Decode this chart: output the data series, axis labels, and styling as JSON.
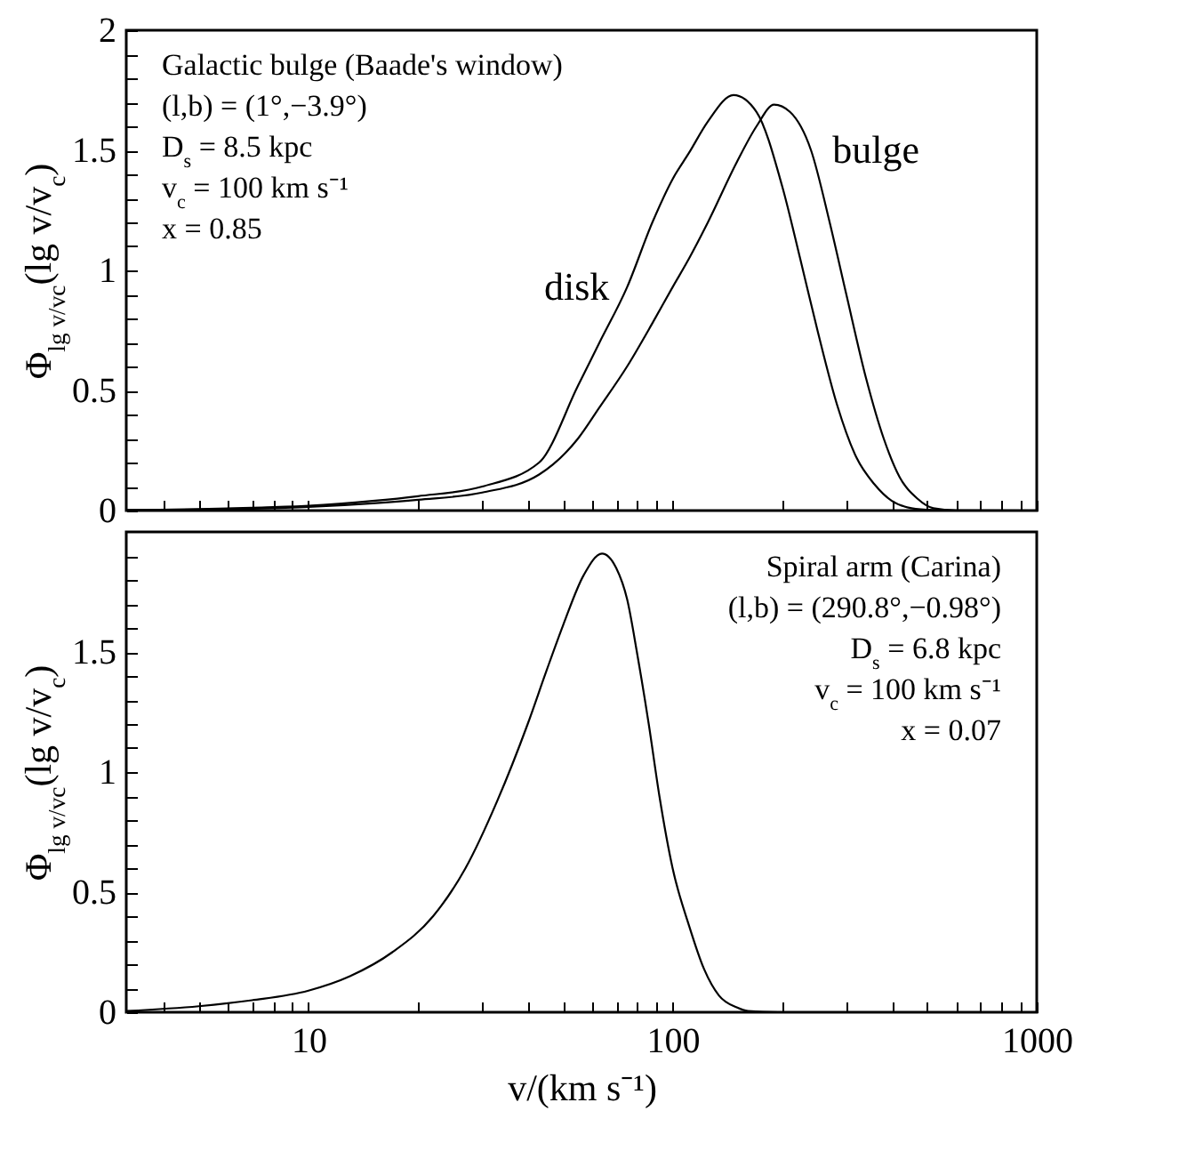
{
  "chart_data": [
    {
      "type": "line",
      "ylabel": "Φ$_{lg v/vc}$(lg v/v$_{c}$)",
      "log": "x",
      "tick_labels": "y",
      "xlim": [
        3.16,
        1000
      ],
      "xticks": [
        {
          "value": 4,
          "label": null
        },
        {
          "value": 5,
          "label": null
        },
        {
          "value": 6,
          "label": null
        },
        {
          "value": 7,
          "label": null
        },
        {
          "value": 8,
          "label": null
        },
        {
          "value": 9,
          "label": null
        },
        10,
        {
          "value": 20,
          "label": null
        },
        {
          "value": 30,
          "label": null
        },
        {
          "value": 40,
          "label": null
        },
        {
          "value": 50,
          "label": null
        },
        {
          "value": 60,
          "label": null
        },
        {
          "value": 70,
          "label": null
        },
        {
          "value": 80,
          "label": null
        },
        {
          "value": 90,
          "label": null
        },
        100,
        {
          "value": 200,
          "label": null
        },
        {
          "value": 300,
          "label": null
        },
        {
          "value": 400,
          "label": null
        },
        {
          "value": 500,
          "label": null
        },
        {
          "value": 600,
          "label": null
        },
        {
          "value": 700,
          "label": null
        },
        {
          "value": 800,
          "label": null
        },
        {
          "value": 900,
          "label": null
        },
        1000
      ],
      "ylim": [
        0,
        2
      ],
      "yticks": [
        0,
        {
          "value": 0.1,
          "label": null
        },
        {
          "value": 0.2,
          "label": null
        },
        {
          "value": 0.3,
          "label": null
        },
        {
          "value": 0.4,
          "label": null
        },
        0.5,
        {
          "value": 0.6,
          "label": null
        },
        {
          "value": 0.7,
          "label": null
        },
        {
          "value": 0.8,
          "label": null
        },
        {
          "value": 0.9,
          "label": null
        },
        1,
        {
          "value": 1.1,
          "label": null
        },
        {
          "value": 1.2,
          "label": null
        },
        {
          "value": 1.3,
          "label": null
        },
        {
          "value": 1.4,
          "label": null
        },
        1.5,
        {
          "value": 1.6,
          "label": null
        },
        {
          "value": 1.7,
          "label": null
        },
        {
          "value": 1.8,
          "label": null
        },
        {
          "value": 1.9,
          "label": null
        },
        2
      ],
      "annotations": [
        "Galactic bulge (Baade's window)",
        "(l,b) = (1°,−3.9°)",
        "D$_{s}$ = 8.5 kpc",
        "v$_{c}$ = 100 km s⁻¹",
        "x = 0.85"
      ],
      "series": [
        {
          "name": "disk",
          "color": "#000000",
          "x": [
            3.16,
            5,
            7,
            10,
            15,
            20,
            30,
            43,
            55,
            63,
            75,
            88,
            100,
            111,
            125,
            147,
            170,
            200,
            224,
            250,
            283,
            320,
            358,
            400,
            453,
            520,
            600
          ],
          "values": [
            0.002,
            0.006,
            0.012,
            0.02,
            0.04,
            0.06,
            0.1,
            0.2,
            0.52,
            0.7,
            0.93,
            1.2,
            1.38,
            1.49,
            1.62,
            1.73,
            1.66,
            1.35,
            1.05,
            0.75,
            0.44,
            0.22,
            0.11,
            0.04,
            0.01,
            0.002,
            0
          ]
        },
        {
          "name": "bulge",
          "color": "#000000",
          "x": [
            3.16,
            5,
            7,
            10,
            15,
            20,
            30,
            43,
            55,
            63,
            75,
            88,
            100,
            111,
            125,
            150,
            170,
            190,
            210,
            240,
            270,
            300,
            340,
            380,
            420,
            470,
            520,
            600,
            1000
          ],
          "values": [
            0.001,
            0.004,
            0.008,
            0.015,
            0.03,
            0.045,
            0.075,
            0.15,
            0.3,
            0.43,
            0.6,
            0.78,
            0.93,
            1.05,
            1.2,
            1.45,
            1.6,
            1.69,
            1.66,
            1.5,
            1.2,
            0.9,
            0.55,
            0.3,
            0.14,
            0.05,
            0.01,
            0.001,
            0
          ]
        }
      ]
    },
    {
      "type": "line",
      "ylabel": "Φ$_{lg v/vc}$(lg v/v$_{c}$)",
      "xlabel": "v/(km s⁻¹)",
      "log": "x",
      "xlim": [
        3.16,
        1000
      ],
      "xticks": [
        {
          "value": 4,
          "label": null
        },
        {
          "value": 5,
          "label": null
        },
        {
          "value": 6,
          "label": null
        },
        {
          "value": 7,
          "label": null
        },
        {
          "value": 8,
          "label": null
        },
        {
          "value": 9,
          "label": null
        },
        10,
        {
          "value": 20,
          "label": null
        },
        {
          "value": 30,
          "label": null
        },
        {
          "value": 40,
          "label": null
        },
        {
          "value": 50,
          "label": null
        },
        {
          "value": 60,
          "label": null
        },
        {
          "value": 70,
          "label": null
        },
        {
          "value": 80,
          "label": null
        },
        {
          "value": 90,
          "label": null
        },
        100,
        {
          "value": 200,
          "label": null
        },
        {
          "value": 300,
          "label": null
        },
        {
          "value": 400,
          "label": null
        },
        {
          "value": 500,
          "label": null
        },
        {
          "value": 600,
          "label": null
        },
        {
          "value": 700,
          "label": null
        },
        {
          "value": 800,
          "label": null
        },
        {
          "value": 900,
          "label": null
        },
        1000
      ],
      "ylim": [
        0,
        2
      ],
      "yticks": [
        0,
        {
          "value": 0.1,
          "label": null
        },
        {
          "value": 0.2,
          "label": null
        },
        {
          "value": 0.3,
          "label": null
        },
        {
          "value": 0.4,
          "label": null
        },
        0.5,
        {
          "value": 0.6,
          "label": null
        },
        {
          "value": 0.7,
          "label": null
        },
        {
          "value": 0.8,
          "label": null
        },
        {
          "value": 0.9,
          "label": null
        },
        1,
        {
          "value": 1.1,
          "label": null
        },
        {
          "value": 1.2,
          "label": null
        },
        {
          "value": 1.3,
          "label": null
        },
        {
          "value": 1.4,
          "label": null
        },
        1.5,
        {
          "value": 1.6,
          "label": null
        },
        {
          "value": 1.7,
          "label": null
        },
        {
          "value": 1.8,
          "label": null
        },
        {
          "value": 1.9,
          "label": null
        }
      ],
      "annotations": [
        "Spiral arm (Carina)",
        "(l,b) = (290.8°,−0.98°)",
        "D$_{s}$ = 6.8 kpc",
        "v$_{c}$ = 100 km s⁻¹",
        "x = 0.07"
      ],
      "series": [
        {
          "color": "#000000",
          "x": [
            3.16,
            5,
            7,
            10,
            13,
            17,
            22,
            27,
            33,
            40,
            45,
            50,
            57,
            64,
            70,
            75,
            80,
            86,
            92,
            100,
            111,
            122,
            134,
            150,
            161,
            195,
            1000
          ],
          "values": [
            0.005,
            0.025,
            0.05,
            0.09,
            0.15,
            0.25,
            0.4,
            0.6,
            0.88,
            1.2,
            1.42,
            1.61,
            1.82,
            1.91,
            1.85,
            1.72,
            1.49,
            1.2,
            0.9,
            0.6,
            0.36,
            0.18,
            0.07,
            0.02,
            0.005,
            0,
            0
          ]
        }
      ]
    }
  ]
}
